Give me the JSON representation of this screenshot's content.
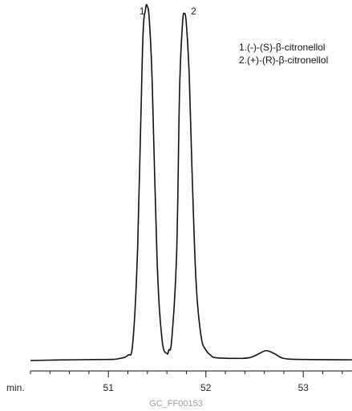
{
  "chart_data": {
    "type": "line",
    "title": "",
    "xlabel": "min.",
    "ylabel": "",
    "xlim": [
      50.2,
      53.5
    ],
    "ylim": [
      0,
      100
    ],
    "ticks": [
      {
        "value": 51,
        "label": "51"
      },
      {
        "value": 52,
        "label": "52"
      },
      {
        "value": 53,
        "label": "53"
      }
    ],
    "minor_step": 0.2,
    "series": [
      {
        "x": [
          50.2,
          50.6,
          51.0,
          51.1,
          51.2,
          51.25,
          51.3,
          51.35,
          51.38,
          51.4,
          51.42,
          51.45,
          51.5,
          51.55,
          51.6,
          51.62,
          51.65,
          51.7,
          51.73,
          51.76,
          51.78,
          51.8,
          51.83,
          51.86,
          51.9,
          51.95,
          52.0,
          52.05,
          52.1,
          52.3,
          52.45,
          52.55,
          52.62,
          52.7,
          52.8,
          53.0,
          53.5
        ],
        "values": [
          0,
          0.2,
          0.3,
          0.5,
          1.5,
          5,
          32,
          88,
          99,
          100,
          96,
          78,
          28,
          6,
          2,
          3,
          6,
          30,
          76,
          95,
          98,
          95,
          80,
          52,
          22,
          7,
          3,
          1.5,
          0.8,
          0.6,
          0.8,
          2,
          2.8,
          2,
          0.6,
          0.3,
          0.2
        ]
      }
    ],
    "peaks": [
      {
        "label": "1",
        "x": 51.42
      },
      {
        "label": "2",
        "x": 51.8
      }
    ],
    "legend": [
      "1.(-)-(S)-β-citronellol",
      "2.(+)-(R)-β-citronellol"
    ],
    "code": "GC_FF00153"
  },
  "colors": {
    "trace": "#111111",
    "axis": "#111111",
    "code": "#999999"
  }
}
